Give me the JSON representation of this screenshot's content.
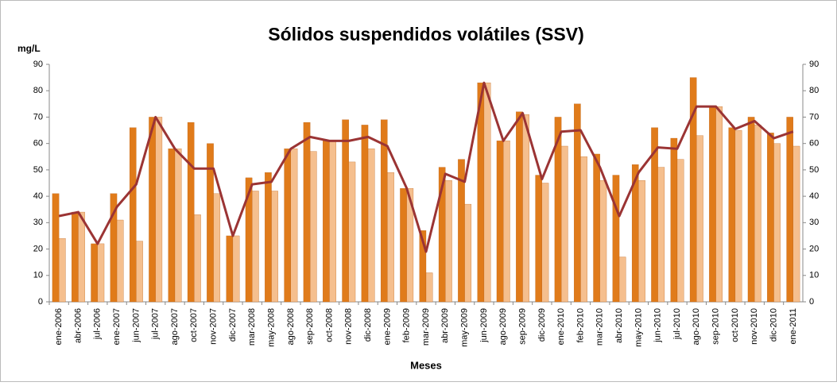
{
  "chart_data": {
    "type": "bar",
    "title": "Sólidos suspendidos volátiles (SSV)",
    "ylabel": "mg/L",
    "xlabel": "Meses",
    "categories": [
      "ene-2006",
      "abr-2006",
      "jul-2006",
      "ene-2007",
      "jun-2007",
      "jul-2007",
      "ago-2007",
      "oct-2007",
      "nov-2007",
      "dic-2007",
      "mar-2008",
      "may-2008",
      "ago-2008",
      "sep-2008",
      "oct-2008",
      "nov-2008",
      "dic-2008",
      "ene-2009",
      "feb-2009",
      "mar-2009",
      "abr-2009",
      "may-2009",
      "jun-2009",
      "ago-2009",
      "sep-2009",
      "dic-2009",
      "ene-2010",
      "feb-2010",
      "mar-2010",
      "abr-2010",
      "may-2010",
      "jun-2010",
      "jul-2010",
      "ago-2010",
      "sep-2010",
      "oct-2010",
      "nov-2010",
      "dic-2010",
      "ene-2011"
    ],
    "series": [
      {
        "type": "bar",
        "color": "#e07b1a",
        "values": [
          41,
          34,
          22,
          41,
          66,
          70,
          58,
          68,
          60,
          25,
          47,
          49,
          58,
          68,
          61,
          69,
          67,
          69,
          43,
          27,
          51,
          54,
          83,
          61,
          72,
          48,
          70,
          75,
          56,
          48,
          52,
          66,
          62,
          85,
          74,
          66,
          70,
          64,
          70
        ]
      },
      {
        "type": "bar",
        "color": "#f5bf8e",
        "values": [
          24,
          34,
          22,
          31,
          23,
          70,
          58,
          33,
          41,
          25,
          42,
          42,
          58,
          57,
          61,
          53,
          58,
          49,
          43,
          11,
          46,
          37,
          83,
          61,
          71,
          45,
          59,
          55,
          46,
          17,
          46,
          51,
          54,
          63,
          74,
          65,
          67,
          60,
          59
        ]
      },
      {
        "type": "line",
        "color": "#9b3434",
        "values": [
          32.5,
          34,
          22,
          36,
          44.5,
          70,
          58,
          50.5,
          50.5,
          25,
          44.5,
          45.5,
          58,
          62.5,
          61,
          61,
          62.5,
          59,
          43,
          19,
          48.5,
          45.5,
          83,
          61,
          71.5,
          46.5,
          64.5,
          65,
          51,
          32.5,
          49,
          58.5,
          58,
          74,
          74,
          65.5,
          68.5,
          62,
          64.5
        ]
      }
    ],
    "ylim": [
      0,
      90
    ],
    "yticks": [
      0,
      10,
      20,
      30,
      40,
      50,
      60,
      70,
      80,
      90
    ],
    "y2lim": [
      0,
      90
    ],
    "y2ticks": [
      0,
      10,
      20,
      30,
      40,
      50,
      60,
      70,
      80,
      90
    ],
    "grid": false
  }
}
